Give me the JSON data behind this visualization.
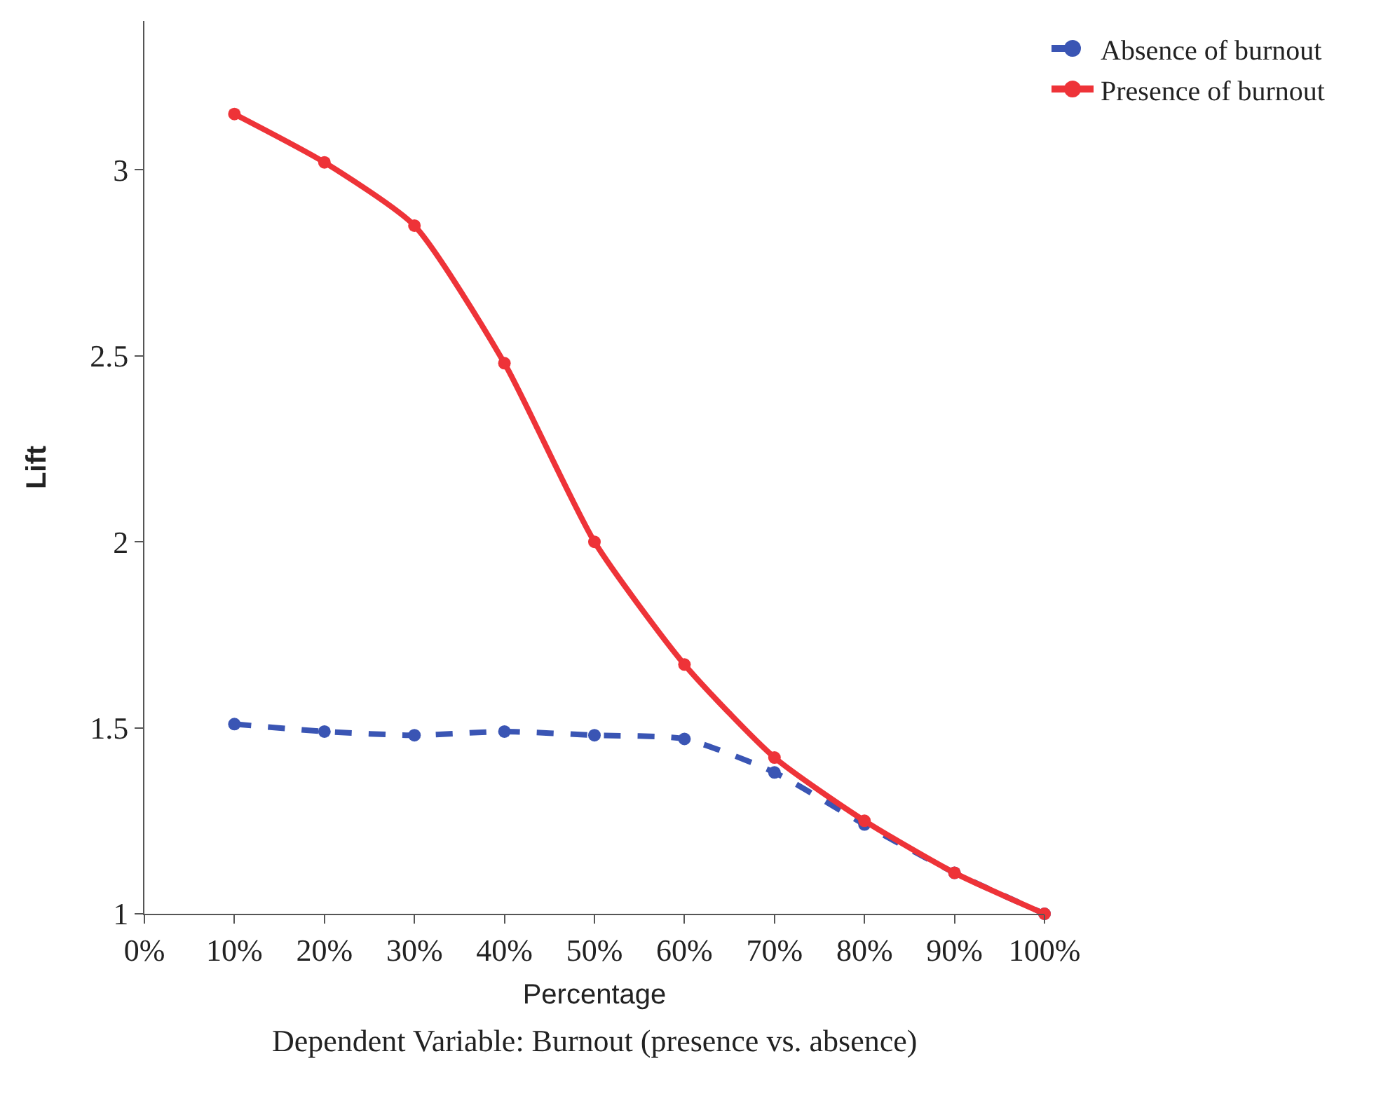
{
  "chart_data": {
    "type": "line",
    "xlabel": "Percentage",
    "ylabel": "Lift",
    "annotations": [
      "Dependent Variable: Burnout (presence vs. absence)"
    ],
    "x": [
      10,
      20,
      30,
      40,
      50,
      60,
      70,
      80,
      90,
      100
    ],
    "series": [
      {
        "name": "Absence of burnout",
        "color": "#3a55b4",
        "values": [
          1.51,
          1.49,
          1.48,
          1.49,
          1.48,
          1.47,
          1.38,
          1.24,
          1.11,
          1.0
        ],
        "line_style": "dashed"
      },
      {
        "name": "Presence of burnout",
        "color": "#ee3338",
        "values": [
          3.15,
          3.02,
          2.85,
          2.48,
          2.0,
          1.67,
          1.42,
          1.25,
          1.11,
          1.0
        ],
        "line_style": "solid"
      }
    ],
    "xlim": [
      0,
      100
    ],
    "ylim": [
      1,
      3.4
    ],
    "xticks": [
      {
        "value": 0,
        "label": "0%"
      },
      {
        "value": 10,
        "label": "10%"
      },
      {
        "value": 20,
        "label": "20%"
      },
      {
        "value": 30,
        "label": "30%"
      },
      {
        "value": 40,
        "label": "40%"
      },
      {
        "value": 50,
        "label": "50%"
      },
      {
        "value": 60,
        "label": "60%"
      },
      {
        "value": 70,
        "label": "70%"
      },
      {
        "value": 80,
        "label": "80%"
      },
      {
        "value": 90,
        "label": "90%"
      },
      {
        "value": 100,
        "label": "100%"
      }
    ],
    "yticks": [
      1,
      1.5,
      2,
      2.5,
      3
    ],
    "legend": "top right",
    "marker": "circle"
  }
}
